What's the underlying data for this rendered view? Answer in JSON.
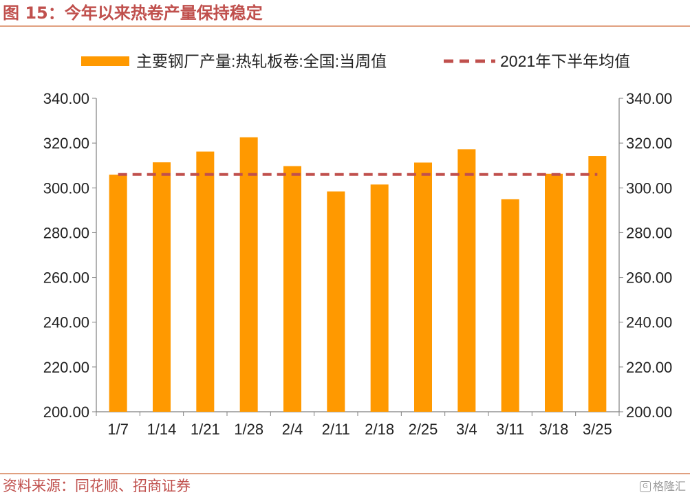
{
  "figure": {
    "title": "图 15：今年以来热卷产量保持稳定",
    "source": "资料来源：同花顺、招商证券",
    "watermark": "格隆汇"
  },
  "colors": {
    "bar": "#ff9900",
    "avg_line": "#c0504d",
    "title": "#c0504d",
    "axis": "#7f7f7f"
  },
  "chart_data": {
    "type": "bar",
    "categories": [
      "1/7",
      "1/14",
      "1/21",
      "1/28",
      "2/4",
      "2/11",
      "2/18",
      "2/25",
      "3/4",
      "3/11",
      "3/18",
      "3/25"
    ],
    "series": [
      {
        "name": "主要钢厂产量:热轧板卷:全国:当周值",
        "type": "bar",
        "values": [
          305.9,
          311.4,
          316.2,
          322.6,
          309.7,
          298.4,
          301.5,
          311.3,
          317.2,
          294.9,
          306.3,
          314.2
        ]
      },
      {
        "name": "2021年下半年均值",
        "type": "line",
        "style": "dashed",
        "values": [
          306.0,
          306.0,
          306.0,
          306.0,
          306.0,
          306.0,
          306.0,
          306.0,
          306.0,
          306.0,
          306.0,
          306.0
        ]
      }
    ],
    "ylim": [
      200,
      340
    ],
    "yticks": [
      "200.00",
      "220.00",
      "240.00",
      "260.00",
      "280.00",
      "300.00",
      "320.00",
      "340.00"
    ],
    "y_axis_duplicated_right": true,
    "legend_position": "top",
    "grid": false
  }
}
